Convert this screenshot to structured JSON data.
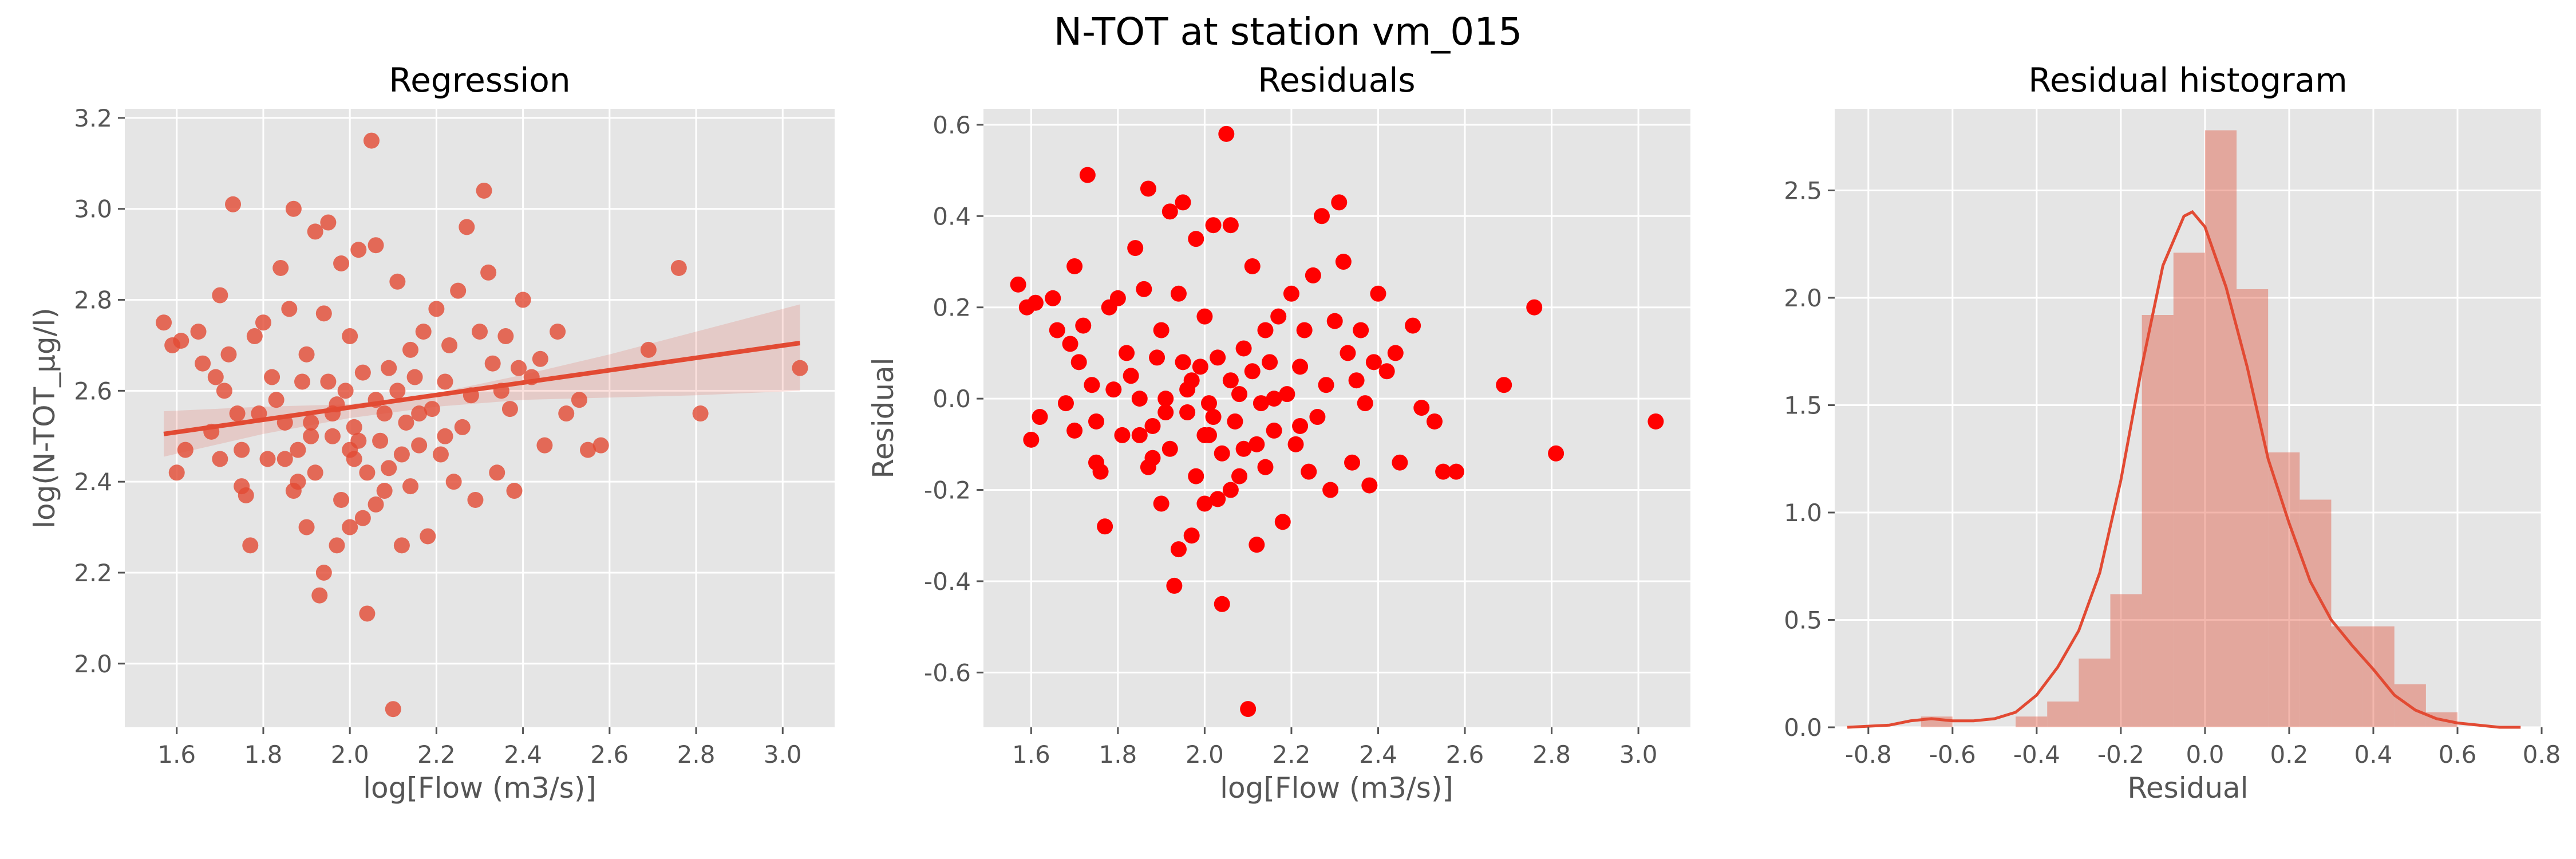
{
  "figure": {
    "title": "N-TOT at station vm_015"
  },
  "colors": {
    "panel_bg": "#e5e5e5",
    "grid": "#ffffff",
    "reg_points": "#e24a33",
    "residual_points": "#ff0000",
    "hist_fill": "#e24a33",
    "kde_line": "#e24a33"
  },
  "chart_data": [
    {
      "type": "scatter",
      "title": "Regression",
      "xlabel": "log[Flow (m3/s)]",
      "ylabel": "log(N-TOT_µg/l)",
      "xlim": [
        1.48,
        3.12
      ],
      "ylim": [
        1.86,
        3.22
      ],
      "xticks": [
        "1.6",
        "1.8",
        "2.0",
        "2.2",
        "2.4",
        "2.6",
        "2.8",
        "3.0"
      ],
      "yticks": [
        "2.0",
        "2.2",
        "2.4",
        "2.6",
        "2.8",
        "3.0",
        "3.2"
      ],
      "grid": true,
      "regression_line": {
        "x": [
          1.57,
          3.04
        ],
        "y": [
          2.505,
          2.705
        ]
      },
      "confidence_band": {
        "x": [
          1.57,
          1.8,
          2.0,
          2.2,
          2.4,
          2.6,
          2.8,
          3.04
        ],
        "lower": [
          2.455,
          2.505,
          2.54,
          2.565,
          2.58,
          2.585,
          2.59,
          2.6
        ],
        "upper": [
          2.555,
          2.565,
          2.57,
          2.595,
          2.635,
          2.68,
          2.73,
          2.79
        ]
      },
      "points": [
        [
          1.57,
          2.75
        ],
        [
          1.59,
          2.7
        ],
        [
          1.6,
          2.42
        ],
        [
          1.61,
          2.71
        ],
        [
          1.62,
          2.47
        ],
        [
          1.65,
          2.73
        ],
        [
          1.66,
          2.66
        ],
        [
          1.68,
          2.51
        ],
        [
          1.69,
          2.63
        ],
        [
          1.7,
          2.45
        ],
        [
          1.7,
          2.81
        ],
        [
          1.71,
          2.6
        ],
        [
          1.72,
          2.68
        ],
        [
          1.73,
          3.01
        ],
        [
          1.74,
          2.55
        ],
        [
          1.75,
          2.39
        ],
        [
          1.75,
          2.47
        ],
        [
          1.76,
          2.37
        ],
        [
          1.77,
          2.26
        ],
        [
          1.78,
          2.72
        ],
        [
          1.79,
          2.55
        ],
        [
          1.8,
          2.75
        ],
        [
          1.81,
          2.45
        ],
        [
          1.82,
          2.63
        ],
        [
          1.83,
          2.58
        ],
        [
          1.84,
          2.87
        ],
        [
          1.85,
          2.53
        ],
        [
          1.86,
          2.78
        ],
        [
          1.87,
          2.38
        ],
        [
          1.87,
          3.0
        ],
        [
          1.88,
          2.47
        ],
        [
          1.89,
          2.62
        ],
        [
          1.9,
          2.68
        ],
        [
          1.9,
          2.3
        ],
        [
          1.91,
          2.53
        ],
        [
          1.92,
          2.95
        ],
        [
          1.92,
          2.42
        ],
        [
          1.93,
          2.15
        ],
        [
          1.94,
          2.77
        ],
        [
          1.94,
          2.2
        ],
        [
          1.95,
          2.97
        ],
        [
          1.96,
          2.5
        ],
        [
          1.96,
          2.55
        ],
        [
          1.97,
          2.57
        ],
        [
          1.98,
          2.88
        ],
        [
          1.98,
          2.36
        ],
        [
          1.99,
          2.6
        ],
        [
          2.0,
          2.72
        ],
        [
          2.0,
          2.3
        ],
        [
          2.01,
          2.45
        ],
        [
          2.01,
          2.52
        ],
        [
          2.02,
          2.91
        ],
        [
          2.02,
          2.49
        ],
        [
          2.03,
          2.32
        ],
        [
          2.04,
          2.42
        ],
        [
          2.04,
          2.11
        ],
        [
          2.05,
          3.15
        ],
        [
          2.06,
          2.92
        ],
        [
          2.06,
          2.58
        ],
        [
          2.07,
          2.49
        ],
        [
          2.08,
          2.55
        ],
        [
          2.09,
          2.65
        ],
        [
          2.09,
          2.43
        ],
        [
          2.1,
          1.9
        ],
        [
          2.11,
          2.84
        ],
        [
          2.11,
          2.6
        ],
        [
          2.12,
          2.26
        ],
        [
          2.13,
          2.53
        ],
        [
          2.14,
          2.69
        ],
        [
          2.14,
          2.39
        ],
        [
          2.15,
          2.63
        ],
        [
          2.16,
          2.48
        ],
        [
          2.17,
          2.73
        ],
        [
          2.18,
          2.28
        ],
        [
          2.19,
          2.56
        ],
        [
          2.2,
          2.78
        ],
        [
          2.21,
          2.46
        ],
        [
          2.22,
          2.62
        ],
        [
          2.23,
          2.7
        ],
        [
          2.24,
          2.4
        ],
        [
          2.25,
          2.82
        ],
        [
          2.26,
          2.52
        ],
        [
          2.27,
          2.96
        ],
        [
          2.28,
          2.59
        ],
        [
          2.29,
          2.36
        ],
        [
          2.3,
          2.73
        ],
        [
          2.31,
          3.04
        ],
        [
          2.32,
          2.86
        ],
        [
          2.33,
          2.66
        ],
        [
          2.34,
          2.42
        ],
        [
          2.35,
          2.6
        ],
        [
          2.36,
          2.72
        ],
        [
          2.37,
          2.56
        ],
        [
          2.38,
          2.38
        ],
        [
          2.39,
          2.65
        ],
        [
          2.4,
          2.8
        ],
        [
          2.42,
          2.63
        ],
        [
          2.44,
          2.67
        ],
        [
          2.45,
          2.48
        ],
        [
          2.48,
          2.73
        ],
        [
          2.5,
          2.55
        ],
        [
          2.53,
          2.58
        ],
        [
          2.55,
          2.47
        ],
        [
          2.58,
          2.48
        ],
        [
          2.69,
          2.69
        ],
        [
          2.76,
          2.87
        ],
        [
          2.81,
          2.55
        ],
        [
          3.04,
          2.65
        ],
        [
          1.97,
          2.26
        ],
        [
          2.06,
          2.35
        ],
        [
          1.88,
          2.4
        ],
        [
          2.12,
          2.46
        ],
        [
          1.95,
          2.62
        ],
        [
          2.03,
          2.64
        ],
        [
          2.08,
          2.38
        ],
        [
          1.91,
          2.5
        ],
        [
          2.16,
          2.55
        ],
        [
          2.0,
          2.47
        ],
        [
          1.85,
          2.45
        ],
        [
          2.22,
          2.5
        ]
      ]
    },
    {
      "type": "scatter",
      "title": "Residuals",
      "xlabel": "log[Flow (m3/s)]",
      "ylabel": "Residual",
      "xlim": [
        1.49,
        3.12
      ],
      "ylim": [
        -0.72,
        0.635
      ],
      "xticks": [
        "1.6",
        "1.8",
        "2.0",
        "2.2",
        "2.4",
        "2.6",
        "2.8",
        "3.0"
      ],
      "yticks": [
        "-0.6",
        "-0.4",
        "-0.2",
        "0.0",
        "0.2",
        "0.4",
        "0.6"
      ],
      "grid": true,
      "points": [
        [
          1.57,
          0.25
        ],
        [
          1.59,
          0.2
        ],
        [
          1.6,
          -0.09
        ],
        [
          1.61,
          0.21
        ],
        [
          1.62,
          -0.04
        ],
        [
          1.65,
          0.22
        ],
        [
          1.66,
          0.15
        ],
        [
          1.68,
          -0.01
        ],
        [
          1.69,
          0.12
        ],
        [
          1.7,
          -0.07
        ],
        [
          1.7,
          0.29
        ],
        [
          1.71,
          0.08
        ],
        [
          1.72,
          0.16
        ],
        [
          1.73,
          0.49
        ],
        [
          1.74,
          0.03
        ],
        [
          1.75,
          -0.14
        ],
        [
          1.75,
          -0.05
        ],
        [
          1.76,
          -0.16
        ],
        [
          1.77,
          -0.28
        ],
        [
          1.78,
          0.2
        ],
        [
          1.79,
          0.02
        ],
        [
          1.8,
          0.22
        ],
        [
          1.81,
          -0.08
        ],
        [
          1.82,
          0.1
        ],
        [
          1.83,
          0.05
        ],
        [
          1.84,
          0.33
        ],
        [
          1.85,
          -0.0
        ],
        [
          1.86,
          0.24
        ],
        [
          1.87,
          -0.15
        ],
        [
          1.87,
          0.46
        ],
        [
          1.88,
          -0.06
        ],
        [
          1.89,
          0.09
        ],
        [
          1.9,
          0.15
        ],
        [
          1.9,
          -0.23
        ],
        [
          1.91,
          -0.0
        ],
        [
          1.92,
          0.41
        ],
        [
          1.92,
          -0.11
        ],
        [
          1.93,
          -0.41
        ],
        [
          1.94,
          0.23
        ],
        [
          1.94,
          -0.33
        ],
        [
          1.95,
          0.43
        ],
        [
          1.96,
          -0.03
        ],
        [
          1.96,
          0.02
        ],
        [
          1.97,
          0.04
        ],
        [
          1.98,
          0.35
        ],
        [
          1.98,
          -0.17
        ],
        [
          1.99,
          0.07
        ],
        [
          2.0,
          0.18
        ],
        [
          2.0,
          -0.23
        ],
        [
          2.01,
          -0.08
        ],
        [
          2.01,
          -0.01
        ],
        [
          2.02,
          0.38
        ],
        [
          2.02,
          -0.04
        ],
        [
          2.03,
          -0.22
        ],
        [
          2.04,
          -0.12
        ],
        [
          2.04,
          -0.45
        ],
        [
          2.05,
          0.58
        ],
        [
          2.06,
          0.38
        ],
        [
          2.06,
          0.04
        ],
        [
          2.07,
          -0.05
        ],
        [
          2.08,
          0.01
        ],
        [
          2.09,
          0.11
        ],
        [
          2.09,
          -0.11
        ],
        [
          2.1,
          -0.68
        ],
        [
          2.11,
          0.29
        ],
        [
          2.11,
          0.06
        ],
        [
          2.12,
          -0.32
        ],
        [
          2.13,
          -0.01
        ],
        [
          2.14,
          0.15
        ],
        [
          2.14,
          -0.15
        ],
        [
          2.15,
          0.08
        ],
        [
          2.16,
          -0.07
        ],
        [
          2.17,
          0.18
        ],
        [
          2.18,
          -0.27
        ],
        [
          2.19,
          0.01
        ],
        [
          2.2,
          0.23
        ],
        [
          2.21,
          -0.1
        ],
        [
          2.22,
          0.07
        ],
        [
          2.23,
          0.15
        ],
        [
          2.24,
          -0.16
        ],
        [
          2.25,
          0.27
        ],
        [
          2.26,
          -0.04
        ],
        [
          2.27,
          0.4
        ],
        [
          2.28,
          0.03
        ],
        [
          2.29,
          -0.2
        ],
        [
          2.3,
          0.17
        ],
        [
          2.31,
          0.43
        ],
        [
          2.32,
          0.3
        ],
        [
          2.33,
          0.1
        ],
        [
          2.34,
          -0.14
        ],
        [
          2.35,
          0.04
        ],
        [
          2.36,
          0.15
        ],
        [
          2.37,
          -0.01
        ],
        [
          2.38,
          -0.19
        ],
        [
          2.39,
          0.08
        ],
        [
          2.4,
          0.23
        ],
        [
          2.42,
          0.06
        ],
        [
          2.44,
          0.1
        ],
        [
          2.45,
          -0.14
        ],
        [
          2.48,
          0.16
        ],
        [
          2.5,
          -0.02
        ],
        [
          2.53,
          -0.05
        ],
        [
          2.55,
          -0.16
        ],
        [
          2.58,
          -0.16
        ],
        [
          2.69,
          0.03
        ],
        [
          2.76,
          0.2
        ],
        [
          2.81,
          -0.12
        ],
        [
          3.04,
          -0.05
        ],
        [
          1.97,
          -0.3
        ],
        [
          2.06,
          -0.2
        ],
        [
          1.88,
          -0.13
        ],
        [
          2.12,
          -0.1
        ],
        [
          1.95,
          0.08
        ],
        [
          2.03,
          0.09
        ],
        [
          2.08,
          -0.17
        ],
        [
          1.91,
          -0.03
        ],
        [
          2.16,
          -0.0
        ],
        [
          2.0,
          -0.08
        ],
        [
          1.85,
          -0.08
        ],
        [
          2.22,
          -0.06
        ]
      ]
    },
    {
      "type": "histogram",
      "title": "Residual histogram",
      "xlabel": "Residual",
      "ylabel": "",
      "xlim": [
        -0.88,
        0.8
      ],
      "ylim": [
        0,
        2.88
      ],
      "xticks": [
        "-0.8",
        "-0.6",
        "-0.4",
        "-0.2",
        "0.0",
        "0.2",
        "0.4",
        "0.6",
        "0.8"
      ],
      "yticks": [
        "0.0",
        "0.5",
        "1.0",
        "1.5",
        "2.0",
        "2.5"
      ],
      "grid": true,
      "bin_edges": [
        -0.675,
        -0.6,
        -0.525,
        -0.45,
        -0.375,
        -0.3,
        -0.225,
        -0.15,
        -0.075,
        0.0,
        0.075,
        0.15,
        0.225,
        0.3,
        0.375,
        0.45,
        0.525,
        0.6
      ],
      "density": [
        0.05,
        0.0,
        0.0,
        0.05,
        0.12,
        0.32,
        0.62,
        1.92,
        2.21,
        2.78,
        2.04,
        1.28,
        1.06,
        0.47,
        0.47,
        0.2,
        0.07
      ],
      "kde": {
        "x": [
          -0.85,
          -0.75,
          -0.7,
          -0.65,
          -0.6,
          -0.55,
          -0.5,
          -0.45,
          -0.4,
          -0.35,
          -0.3,
          -0.25,
          -0.2,
          -0.15,
          -0.1,
          -0.05,
          -0.03,
          0.0,
          0.05,
          0.1,
          0.15,
          0.2,
          0.25,
          0.3,
          0.35,
          0.4,
          0.45,
          0.5,
          0.55,
          0.6,
          0.65,
          0.7,
          0.75
        ],
        "y": [
          0.0,
          0.01,
          0.03,
          0.04,
          0.03,
          0.03,
          0.04,
          0.07,
          0.15,
          0.28,
          0.45,
          0.72,
          1.15,
          1.68,
          2.15,
          2.38,
          2.4,
          2.33,
          2.05,
          1.68,
          1.25,
          0.95,
          0.68,
          0.5,
          0.38,
          0.27,
          0.15,
          0.08,
          0.04,
          0.02,
          0.01,
          0.0,
          0.0
        ]
      }
    }
  ]
}
